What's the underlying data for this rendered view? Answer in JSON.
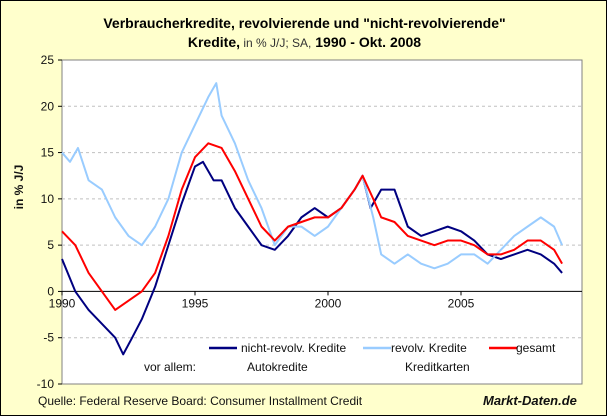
{
  "title": {
    "line1": "Verbraucherkredite, revolvierende und \"nicht-revolvierende\"",
    "line2_bold": "Kredite,",
    "line2_thin": " in % J/J; SA,",
    "line2_bold2": " 1990 - Okt. 2008"
  },
  "source": "Quelle: Federal Reserve Board: Consumer Installment Credit",
  "brand": "Markt-Daten.de",
  "legend_note": "vor allem:",
  "chart_data": {
    "type": "line",
    "ylabel": "in % J/J",
    "xlabel": "",
    "ylim": [
      -10,
      25
    ],
    "xlim": [
      1990,
      2009
    ],
    "yticks": [
      -10,
      -5,
      0,
      5,
      10,
      15,
      20,
      25
    ],
    "xticks": [
      1990,
      1995,
      2000,
      2005
    ],
    "grid": "horizontal dashed",
    "legend_placement": "bottom-right inside",
    "series": [
      {
        "name": "nicht-revolv. Kredite",
        "sub": "Autokredite",
        "color": "#000080",
        "x": [
          1990,
          1990.5,
          1991,
          1991.5,
          1992,
          1992.3,
          1992.6,
          1993,
          1993.5,
          1994,
          1994.5,
          1995,
          1995.3,
          1995.7,
          1996,
          1996.5,
          1997,
          1997.5,
          1998,
          1998.5,
          1999,
          1999.5,
          2000,
          2000.5,
          2001,
          2001.3,
          2001.6,
          2002,
          2002.5,
          2003,
          2003.5,
          2004,
          2004.5,
          2005,
          2005.5,
          2006,
          2006.5,
          2007,
          2007.5,
          2008,
          2008.5,
          2008.8
        ],
        "y": [
          3.5,
          0,
          -2,
          -3.5,
          -5,
          -6.8,
          -5.2,
          -3,
          0.5,
          5,
          9.5,
          13.5,
          14,
          12,
          12,
          9,
          7,
          5,
          4.5,
          6,
          8,
          9,
          8,
          9,
          11,
          12.5,
          9,
          11,
          11,
          7,
          6,
          6.5,
          7,
          6.5,
          5.5,
          4,
          3.5,
          4,
          4.5,
          4,
          3,
          2
        ]
      },
      {
        "name": "revolv. Kredite",
        "sub": "Kreditkarten",
        "color": "#99CCFF",
        "x": [
          1990,
          1990.3,
          1990.6,
          1991,
          1991.5,
          1992,
          1992.5,
          1993,
          1993.5,
          1994,
          1994.5,
          1995,
          1995.5,
          1995.8,
          1996,
          1996.5,
          1997,
          1997.5,
          1998,
          1998.5,
          1999,
          1999.5,
          2000,
          2000.5,
          2001,
          2001.3,
          2001.7,
          2002,
          2002.5,
          2003,
          2003.5,
          2004,
          2004.5,
          2005,
          2005.5,
          2006,
          2006.5,
          2007,
          2007.5,
          2008,
          2008.5,
          2008.8
        ],
        "y": [
          15,
          14,
          15.5,
          12,
          11,
          8,
          6,
          5,
          7,
          10,
          15,
          18,
          21,
          22.5,
          19,
          16,
          12,
          9,
          5,
          7,
          7,
          6,
          7,
          9,
          11,
          12.5,
          8,
          4,
          3,
          4,
          3,
          2.5,
          3,
          4,
          4,
          3,
          4.5,
          6,
          7,
          8,
          7,
          5
        ]
      },
      {
        "name": "gesamt",
        "sub": "",
        "color": "#FF0000",
        "x": [
          1990,
          1990.5,
          1991,
          1991.5,
          1992,
          1992.5,
          1993,
          1993.5,
          1994,
          1994.5,
          1995,
          1995.5,
          1996,
          1996.5,
          1997,
          1997.5,
          1998,
          1998.5,
          1999,
          1999.5,
          2000,
          2000.5,
          2001,
          2001.3,
          2001.7,
          2002,
          2002.5,
          2003,
          2003.5,
          2004,
          2004.5,
          2005,
          2005.5,
          2006,
          2006.5,
          2007,
          2007.5,
          2008,
          2008.5,
          2008.8
        ],
        "y": [
          6.5,
          5,
          2,
          0,
          -2,
          -1,
          0,
          2,
          6,
          11,
          14.5,
          16,
          15.5,
          13,
          10,
          7,
          5.5,
          7,
          7.5,
          8,
          8,
          9,
          11,
          12.5,
          10,
          8,
          7.5,
          6,
          5.5,
          5,
          5.5,
          5.5,
          5,
          4,
          4,
          4.5,
          5.5,
          5.5,
          4.5,
          3
        ]
      }
    ]
  }
}
